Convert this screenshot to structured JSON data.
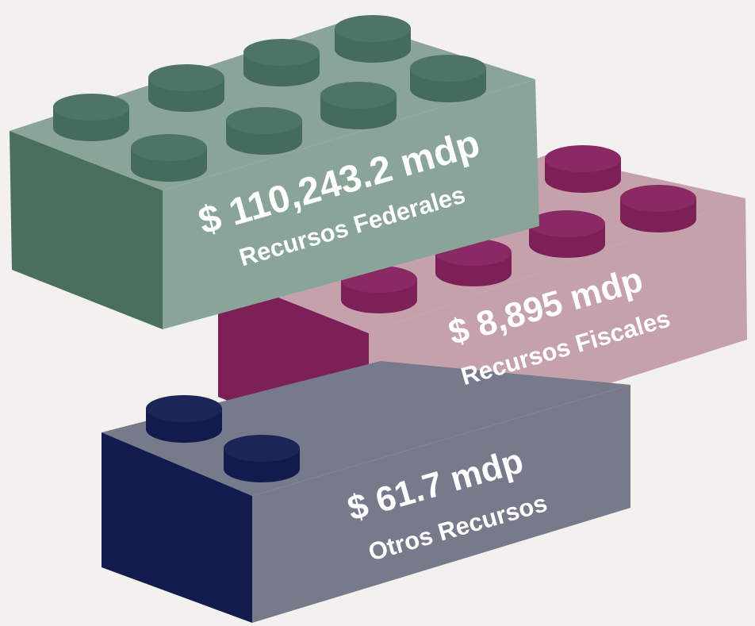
{
  "bricks": [
    {
      "amount": "$ 110,243.2 mdp",
      "label": "Recursos Federales"
    },
    {
      "amount": "$ 8,895 mdp",
      "label": "Recursos Fiscales"
    },
    {
      "amount": "$ 61.7 mdp",
      "label": "Otros Recursos"
    }
  ]
}
